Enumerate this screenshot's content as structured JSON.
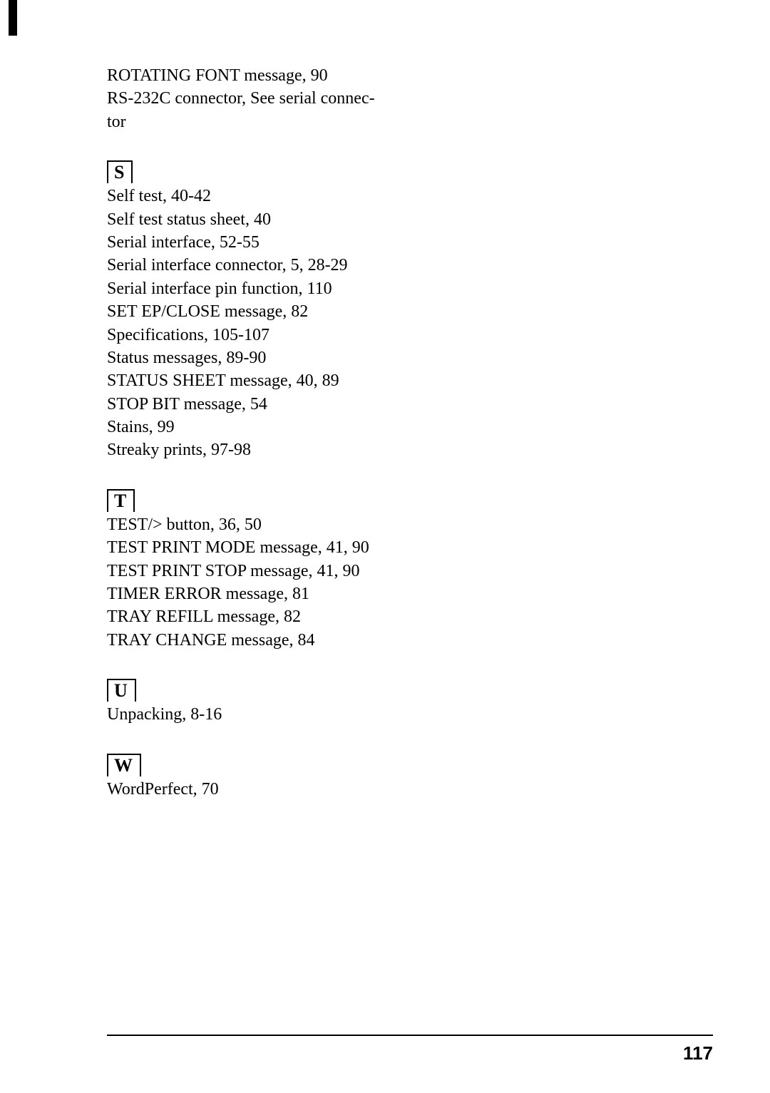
{
  "entries_top": [
    "ROTATING FONT message, 90",
    "RS-232C connector, See serial connec-",
    "tor"
  ],
  "sections": [
    {
      "letter": "S",
      "entries": [
        "Self test, 40-42",
        "Self test status sheet, 40",
        "Serial interface, 52-55",
        "Serial interface connector, 5, 28-29",
        "Serial interface pin function, 110",
        "SET EP/CLOSE message, 82",
        "Specifications, 105-107",
        "Status messages, 89-90",
        "STATUS SHEET message, 40, 89",
        "STOP BIT message, 54",
        "Stains, 99",
        "Streaky prints, 97-98"
      ]
    },
    {
      "letter": "T",
      "entries": [
        "TEST/> button, 36, 50",
        "TEST PRINT MODE message, 41, 90",
        "TEST PRINT STOP message, 41, 90",
        "TIMER ERROR message, 81",
        "TRAY REFILL message, 82",
        "TRAY CHANGE message, 84"
      ]
    },
    {
      "letter": "U",
      "entries": [
        "Unpacking, 8-16"
      ]
    },
    {
      "letter": "W",
      "entries": [
        "WordPerfect, 70"
      ]
    }
  ],
  "page_number": "117"
}
